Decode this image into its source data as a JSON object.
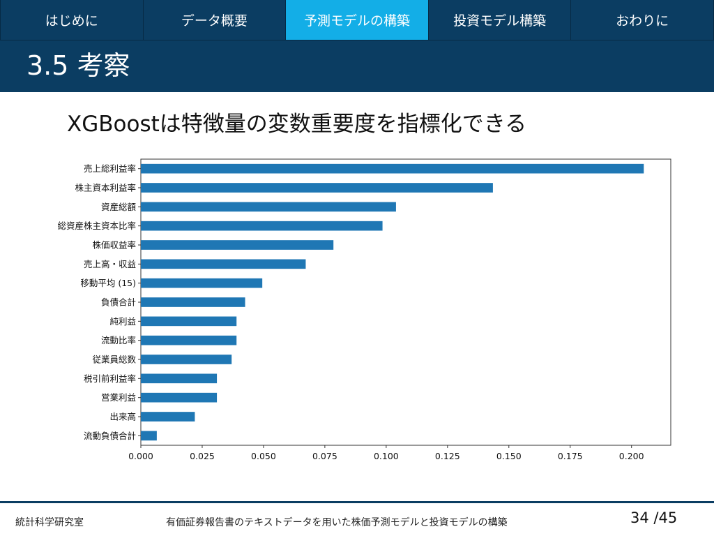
{
  "nav": {
    "tabs": [
      {
        "label": "はじめに",
        "active": false
      },
      {
        "label": "データ概要",
        "active": false
      },
      {
        "label": "予測モデルの構築",
        "active": true
      },
      {
        "label": "投資モデル構築",
        "active": false
      },
      {
        "label": "おわりに",
        "active": false
      }
    ]
  },
  "slide": {
    "title": "3.5 考察",
    "subtitle": "XGBoostは特徴量の変数重要度を指標化できる"
  },
  "footer": {
    "lab": "統計科学研究室",
    "presentation_title": "有価証券報告書のテキストデータを用いた株価予測モデルと投資モデルの構築",
    "page": "34 /45"
  },
  "colors": {
    "nav_bg": "#0b3d62",
    "nav_active": "#13aee7",
    "bar": "#1f77b4"
  },
  "chart_data": {
    "type": "bar",
    "orientation": "horizontal",
    "title": "",
    "xlabel": "",
    "ylabel": "",
    "categories": [
      "売上総利益率",
      "株主資本利益率",
      "資産総額",
      "総資産株主資本比率",
      "株価収益率",
      "売上高・収益",
      "移動平均 (15)",
      "負債合計",
      "純利益",
      "流動比率",
      "従業員総数",
      "税引前利益率",
      "営業利益",
      "出来高",
      "流動負債合計"
    ],
    "values": [
      0.205,
      0.1435,
      0.104,
      0.0985,
      0.0785,
      0.0672,
      0.0495,
      0.0425,
      0.039,
      0.039,
      0.037,
      0.031,
      0.031,
      0.022,
      0.0065
    ],
    "xlim": [
      0,
      0.216
    ],
    "xticks": [
      "0.000",
      "0.025",
      "0.050",
      "0.075",
      "0.100",
      "0.125",
      "0.150",
      "0.175",
      "0.200"
    ],
    "grid": false,
    "legend": "none"
  }
}
